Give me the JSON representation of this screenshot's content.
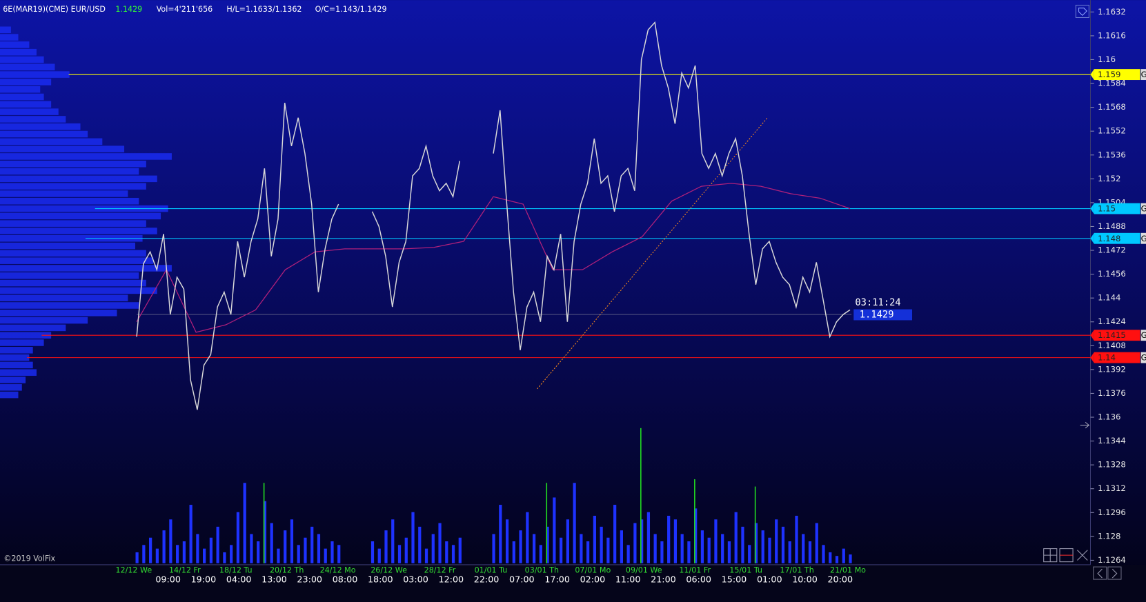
{
  "header": {
    "symbol": "6E(MAR19)(CME) EUR/USD",
    "last": "1.1429",
    "volume": "Vol=4'211'656",
    "high_low": "H/L=1.1633/1.1362",
    "open_close": "O/C=1.143/1.1429"
  },
  "footer": "©2019 VolFix",
  "chart_data": {
    "type": "line",
    "ylim": [
      1.1261,
      1.164
    ],
    "yticks": [
      1.1632,
      1.1616,
      1.16,
      1.1584,
      1.1568,
      1.1552,
      1.1536,
      1.152,
      1.1504,
      1.1488,
      1.1472,
      1.1456,
      1.144,
      1.1424,
      1.1408,
      1.1392,
      1.1376,
      1.136,
      1.1344,
      1.1328,
      1.1312,
      1.1296,
      1.128,
      1.1264
    ],
    "dates": [
      "12/12 We",
      "14/12 Fr",
      "18/12 Tu",
      "20/12 Th",
      "24/12 Mo",
      "26/12 We",
      "28/12 Fr",
      "01/01 Tu",
      "03/01 Th",
      "07/01 Mo",
      "09/01 We",
      "11/01 Fr",
      "15/01 Tu",
      "17/01 Th",
      "21/01 Mo"
    ],
    "times": [
      "09:00",
      "19:00",
      "04:00",
      "13:00",
      "23:00",
      "08:00",
      "18:00",
      "03:00",
      "12:00",
      "22:00",
      "07:00",
      "17:00",
      "02:00",
      "11:00",
      "21:00",
      "06:00",
      "15:00",
      "01:00",
      "10:00",
      "20:00"
    ],
    "price": {
      "color": "#d8d8d8",
      "values": [
        1.1414,
        1.1463,
        1.1471,
        1.1459,
        1.1483,
        1.1429,
        1.1454,
        1.1446,
        1.1385,
        1.1365,
        1.1395,
        1.1402,
        1.1434,
        1.1444,
        1.1429,
        1.1478,
        1.1454,
        1.1478,
        1.1493,
        1.1527,
        1.1468,
        1.1493,
        1.1571,
        1.1542,
        1.1561,
        1.1537,
        1.1503,
        1.1444,
        1.1473,
        1.1493,
        1.1503,
        null,
        null,
        null,
        null,
        1.1498,
        1.1488,
        1.1468,
        1.1434,
        1.1464,
        1.1478,
        1.1522,
        1.1527,
        1.1542,
        1.1522,
        1.1512,
        1.1517,
        1.1508,
        1.1532,
        null,
        null,
        null,
        null,
        1.1537,
        1.1566,
        1.1503,
        1.1444,
        1.1405,
        1.1434,
        1.1444,
        1.1424,
        1.1468,
        1.1459,
        1.1483,
        1.1424,
        1.1478,
        1.1503,
        1.1517,
        1.1547,
        1.1517,
        1.1522,
        1.1498,
        1.1522,
        1.1527,
        1.1512,
        1.16,
        1.162,
        1.1625,
        1.1596,
        1.1581,
        1.1557,
        1.1591,
        1.1581,
        1.1596,
        1.1537,
        1.1527,
        1.1537,
        1.1522,
        1.1537,
        1.1547,
        1.1522,
        1.1483,
        1.1449,
        1.1473,
        1.1478,
        1.1464,
        1.1454,
        1.1449,
        1.1434,
        1.1454,
        1.1444,
        1.1464,
        1.1439,
        1.1414,
        1.1424,
        1.1429,
        1.1432
      ]
    },
    "vwap": {
      "color": "#b0207a",
      "values": [
        1.1424,
        1.1459,
        1.1417,
        1.1422,
        1.1432,
        1.1459,
        1.1471,
        1.1473,
        1.1473,
        1.1473,
        1.1474,
        1.1478,
        1.1508,
        1.1503,
        1.1459,
        1.1459,
        1.1471,
        1.1481,
        1.1505,
        1.1515,
        1.1517,
        1.1515,
        1.151,
        1.1507,
        1.15
      ]
    },
    "volume": {
      "color": "#1e32ff",
      "values": [
        15,
        25,
        35,
        20,
        45,
        60,
        25,
        30,
        80,
        40,
        20,
        35,
        50,
        15,
        25,
        70,
        110,
        40,
        30,
        85,
        55,
        20,
        45,
        60,
        25,
        35,
        50,
        40,
        20,
        30,
        25,
        null,
        null,
        null,
        null,
        30,
        20,
        45,
        60,
        25,
        35,
        70,
        50,
        20,
        40,
        55,
        30,
        25,
        35,
        null,
        null,
        null,
        null,
        40,
        80,
        60,
        30,
        45,
        70,
        40,
        25,
        50,
        90,
        35,
        60,
        110,
        40,
        30,
        65,
        50,
        35,
        80,
        45,
        25,
        55,
        60,
        70,
        40,
        30,
        65,
        60,
        40,
        30,
        75,
        45,
        35,
        60,
        40,
        30,
        70,
        50,
        25,
        55,
        45,
        35,
        60,
        50,
        30,
        65,
        40,
        30,
        55,
        25,
        15,
        10,
        20,
        12
      ]
    },
    "volume_spikes": {
      "color": "#22dd22",
      "values": [
        null,
        null,
        null,
        null,
        null,
        null,
        null,
        null,
        null,
        null,
        null,
        null,
        null,
        null,
        null,
        null,
        null,
        null,
        null,
        110,
        null,
        null,
        null,
        null,
        null,
        null,
        null,
        null,
        null,
        null,
        null,
        null,
        null,
        null,
        null,
        null,
        null,
        null,
        null,
        null,
        null,
        null,
        null,
        null,
        null,
        null,
        null,
        null,
        null,
        null,
        null,
        null,
        null,
        null,
        null,
        null,
        null,
        null,
        null,
        null,
        null,
        110,
        null,
        null,
        null,
        null,
        null,
        null,
        null,
        null,
        null,
        null,
        null,
        null,
        null,
        185,
        null,
        null,
        null,
        null,
        null,
        null,
        null,
        115,
        null,
        null,
        null,
        null,
        null,
        null,
        null,
        null,
        105,
        null,
        null,
        null,
        null,
        null,
        null,
        null,
        null,
        null,
        null,
        null,
        null,
        null,
        null,
        null
      ]
    },
    "profile": {
      "color": "#1a2cf0",
      "prices": [
        1.162,
        1.1615,
        1.161,
        1.1605,
        1.16,
        1.1595,
        1.159,
        1.1585,
        1.158,
        1.1575,
        1.157,
        1.1565,
        1.156,
        1.1555,
        1.155,
        1.1545,
        1.154,
        1.1535,
        1.153,
        1.1525,
        1.152,
        1.1515,
        1.151,
        1.1505,
        1.15,
        1.1495,
        1.149,
        1.1485,
        1.148,
        1.1475,
        1.147,
        1.1465,
        1.146,
        1.1455,
        1.145,
        1.1445,
        1.144,
        1.1435,
        1.143,
        1.1425,
        1.142,
        1.1415,
        1.141,
        1.1405,
        1.14,
        1.1395,
        1.139,
        1.1385,
        1.138,
        1.1375
      ],
      "values": [
        15,
        25,
        40,
        50,
        60,
        75,
        95,
        70,
        55,
        60,
        70,
        80,
        90,
        110,
        120,
        140,
        170,
        235,
        200,
        190,
        215,
        200,
        175,
        190,
        230,
        220,
        200,
        215,
        195,
        185,
        200,
        210,
        235,
        190,
        200,
        215,
        175,
        190,
        160,
        120,
        90,
        70,
        60,
        45,
        40,
        45,
        50,
        35,
        30,
        25
      ]
    },
    "levels": [
      {
        "value": 1.159,
        "color": "#ffff00"
      },
      {
        "value": 1.15,
        "color": "#00c8ff"
      },
      {
        "value": 1.148,
        "color": "#00c8ff"
      },
      {
        "value": 1.1415,
        "color": "#ff1010"
      },
      {
        "value": 1.14,
        "color": "#ff1010"
      }
    ],
    "level_tag": "G",
    "trendline": {
      "color": "#ff8c1a",
      "values": [
        1.1379,
        1.1561
      ]
    },
    "current_price": 1.1429,
    "timer": "03:11:24"
  }
}
